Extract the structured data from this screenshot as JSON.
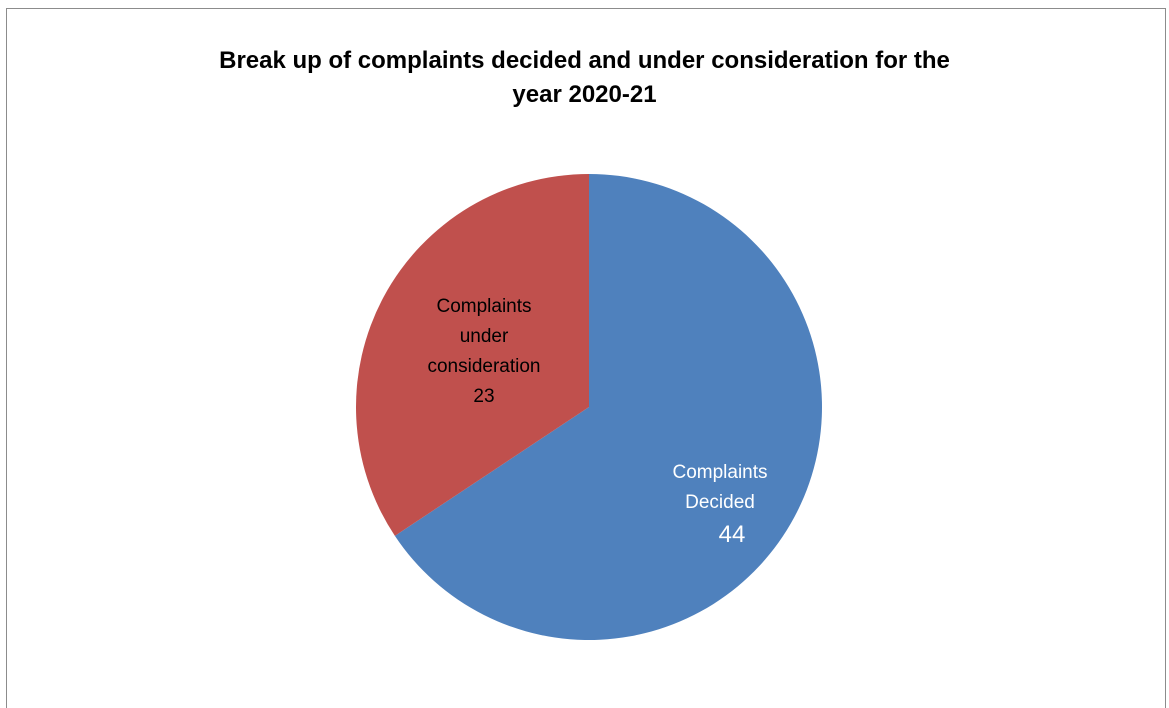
{
  "chart_data": {
    "type": "pie",
    "title": "Break up of complaints decided and under consideration  for the year 2020-21",
    "slices": [
      {
        "label_lines": [
          "Complaints",
          "Decided"
        ],
        "value": 44,
        "color": "#4F81BD",
        "text_color": "#ffffff"
      },
      {
        "label_lines": [
          "Complaints",
          "under",
          "consideration"
        ],
        "value": 23,
        "color": "#C0504D",
        "text_color": "#000000"
      }
    ],
    "legend": "none",
    "start_angle": "top, clockwise"
  }
}
